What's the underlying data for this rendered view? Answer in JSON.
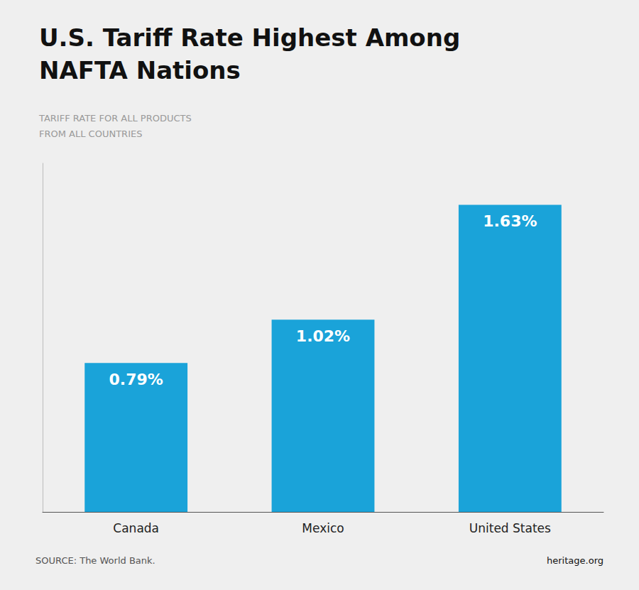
{
  "chart_data": {
    "type": "bar",
    "title": "U.S. Tariff Rate Highest Among\nNAFTA Nations",
    "subtitle": "TARIFF RATE FOR ALL PRODUCTS\nFROM ALL COUNTRIES",
    "categories": [
      "Canada",
      "Mexico",
      "United States"
    ],
    "values": [
      0.79,
      1.02,
      1.63
    ],
    "value_labels": [
      "0.79%",
      "1.02%",
      "1.63%"
    ],
    "data_labels": true,
    "color": "#1aa3d9",
    "ylim": [
      0,
      1.85
    ],
    "grid": false,
    "tick_labels": "x",
    "annotations": [
      "SOURCE: The World Bank.",
      "heritage.org"
    ]
  }
}
